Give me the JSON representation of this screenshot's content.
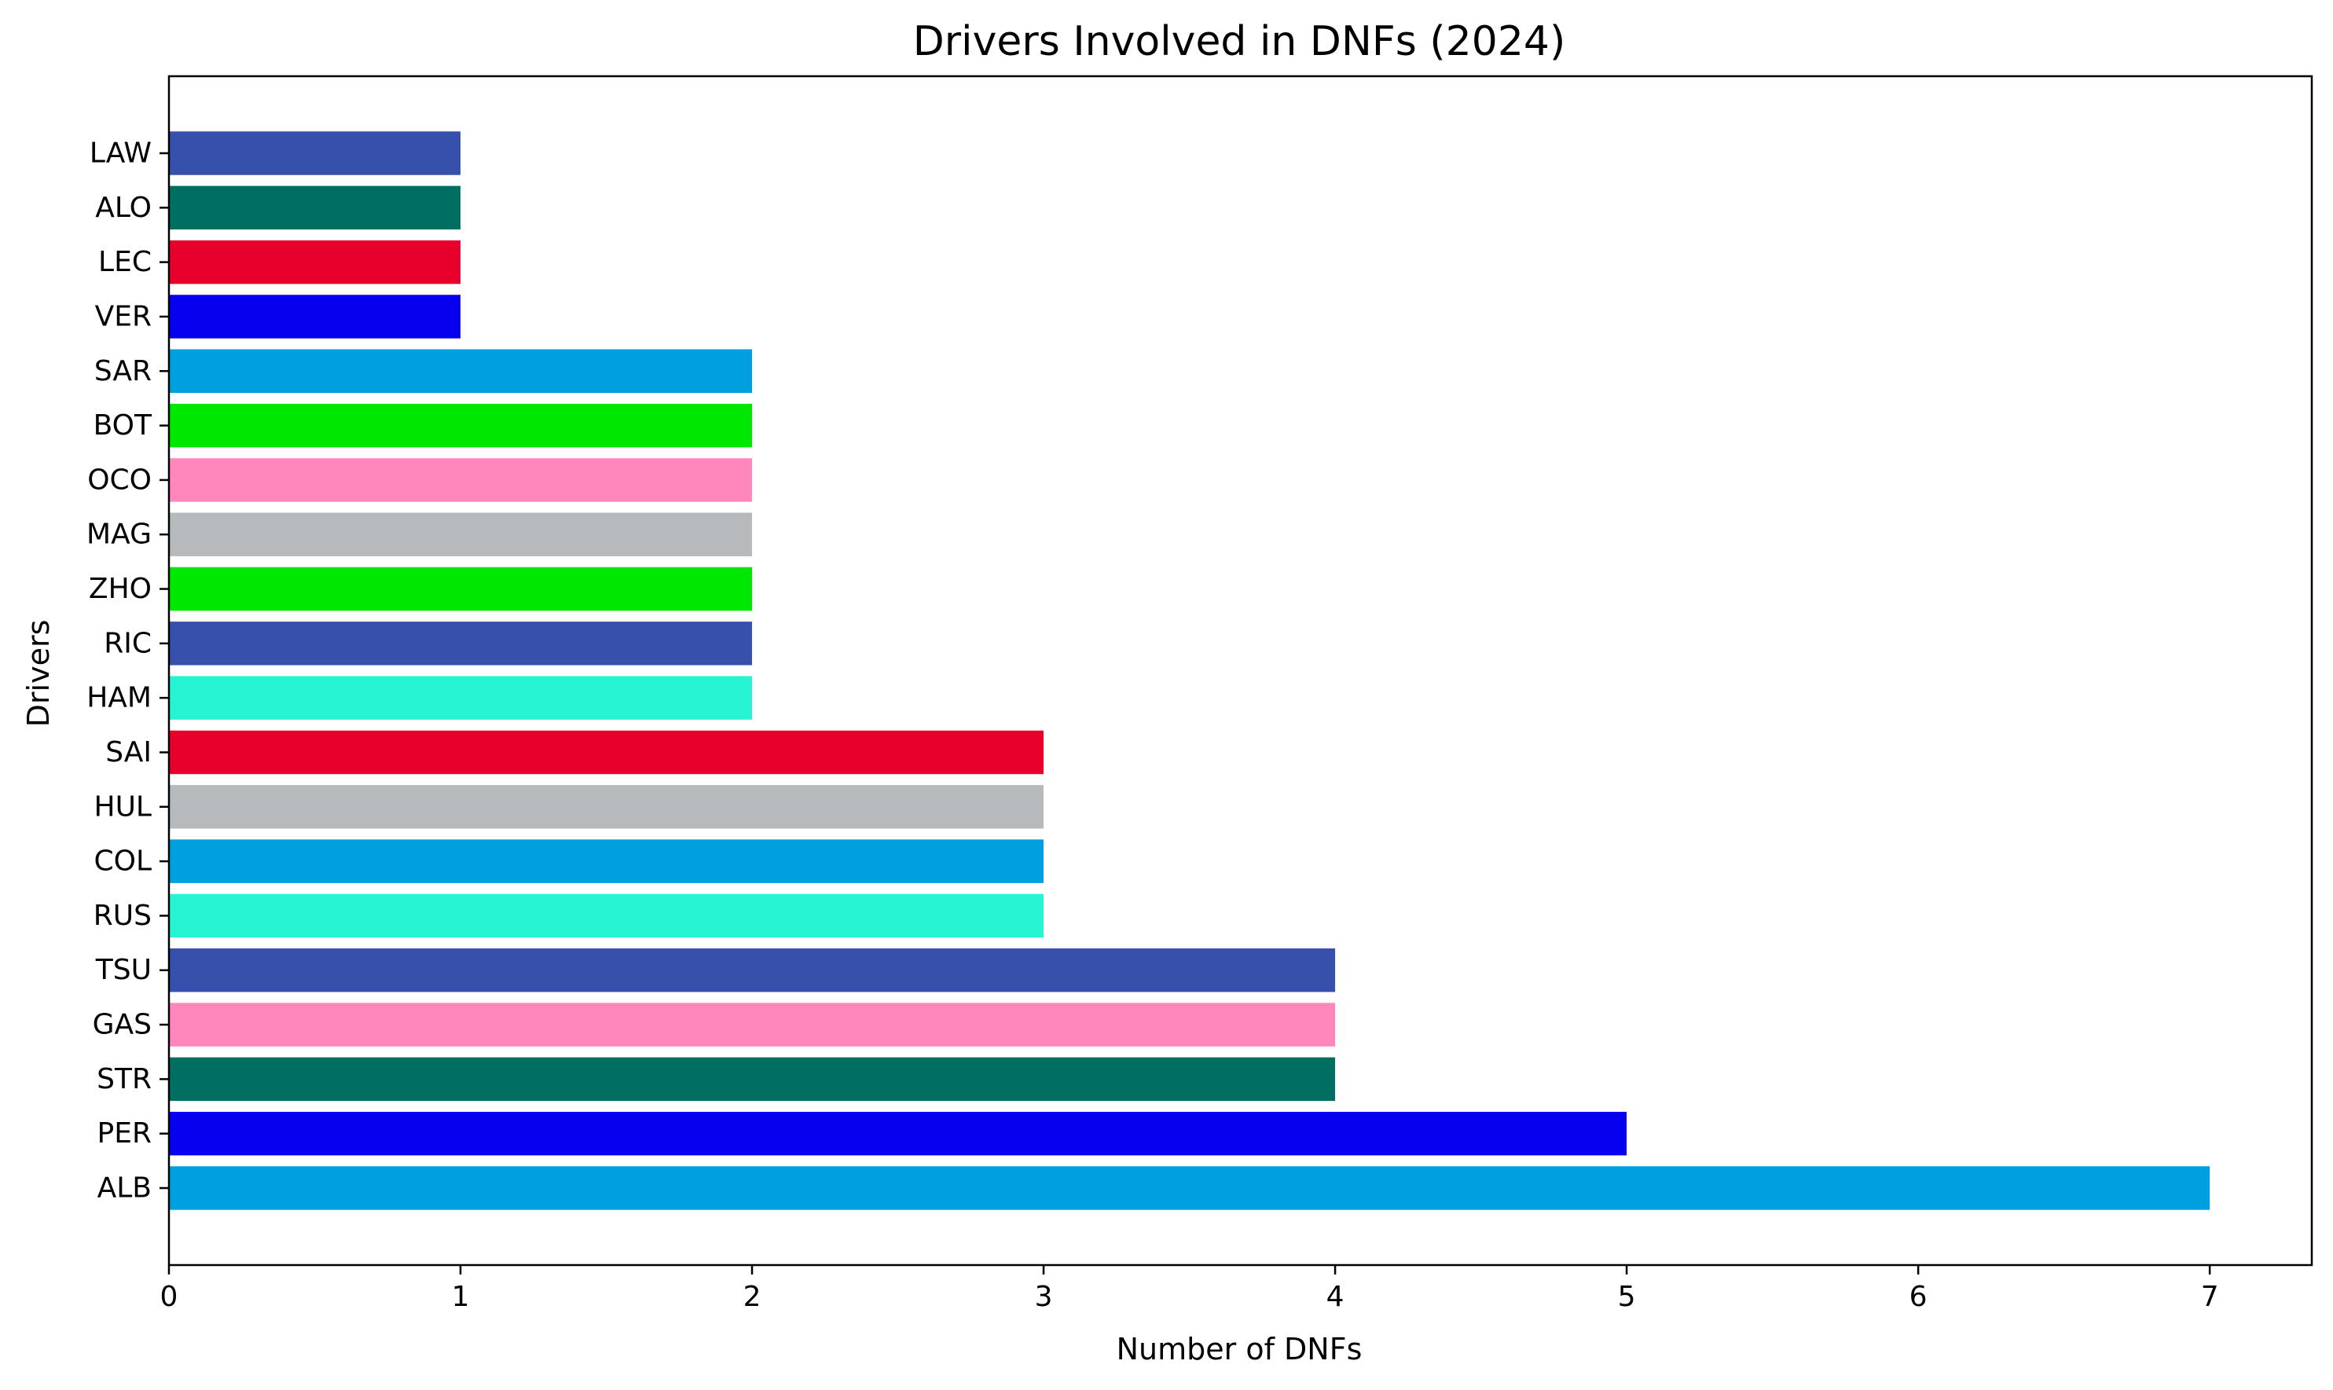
{
  "chart_data": {
    "type": "bar",
    "orientation": "horizontal",
    "title": "Drivers Involved in DNFs (2024)",
    "xlabel": "Number of DNFs",
    "ylabel": "Drivers",
    "xlim": [
      0,
      7.35
    ],
    "xticks": [
      0,
      1,
      2,
      3,
      4,
      5,
      6,
      7
    ],
    "grid": false,
    "categories": [
      "ALB",
      "PER",
      "STR",
      "GAS",
      "TSU",
      "RUS",
      "COL",
      "HUL",
      "SAI",
      "HAM",
      "RIC",
      "ZHO",
      "MAG",
      "OCO",
      "BOT",
      "SAR",
      "VER",
      "LEC",
      "ALO",
      "LAW"
    ],
    "values": [
      7,
      5,
      4,
      4,
      4,
      3,
      3,
      3,
      3,
      2,
      2,
      2,
      2,
      2,
      2,
      2,
      1,
      1,
      1,
      1
    ],
    "colors": [
      "#00A0DE",
      "#0600EF",
      "#006F62",
      "#FF87BC",
      "#3750AC",
      "#27F4D2",
      "#00A0DE",
      "#B6BABD",
      "#E8002D",
      "#27F4D2",
      "#3750AC",
      "#00E701",
      "#B6BABD",
      "#FF87BC",
      "#00E701",
      "#00A0DE",
      "#0600EF",
      "#E8002D",
      "#006F62",
      "#3750AC"
    ]
  }
}
